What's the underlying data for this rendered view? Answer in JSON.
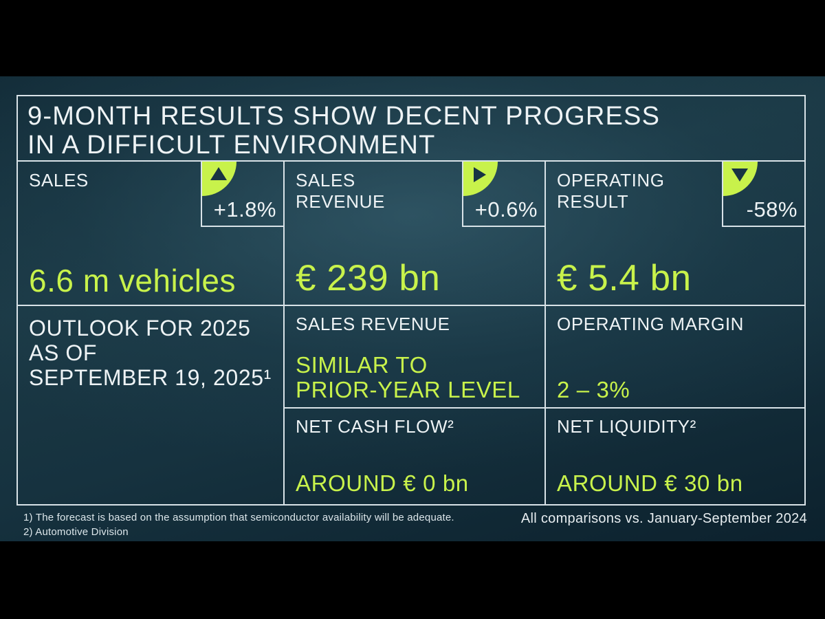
{
  "slide": {
    "title_lines": [
      "9-MONTH RESULTS SHOW DECENT PROGRESS",
      "IN A DIFFICULT ENVIRONMENT"
    ],
    "kpis": [
      {
        "label": "SALES",
        "trend": "up",
        "delta": "+1.8%",
        "value": "6.6 m vehicles"
      },
      {
        "label": "SALES REVENUE",
        "trend": "right",
        "delta": "+0.6%",
        "value": "€ 239 bn"
      },
      {
        "label": "OPERATING RESULT",
        "trend": "down",
        "delta": "-58%",
        "value": "€ 5.4 bn"
      }
    ],
    "outlook": {
      "heading_lines": [
        "OUTLOOK FOR 2025",
        "AS OF",
        "SEPTEMBER 19, 2025¹"
      ],
      "items": [
        {
          "label": "SALES REVENUE",
          "value_lines": [
            "SIMILAR TO",
            "PRIOR-YEAR LEVEL"
          ]
        },
        {
          "label": "OPERATING MARGIN",
          "value_lines": [
            "2 – 3%"
          ]
        },
        {
          "label": "NET CASH FLOW²",
          "value_lines": [
            "AROUND € 0 bn"
          ]
        },
        {
          "label": "NET LIQUIDITY²",
          "value_lines": [
            "AROUND € 30 bn"
          ]
        }
      ]
    },
    "footnotes": [
      "1) The forecast is based on the assumption that semiconductor availability will be adequate.",
      "2) Automotive Division"
    ],
    "comparison_note": "All comparisons vs. January-September 2024"
  },
  "colors": {
    "accent_green": "#c8f24b",
    "background_teal": "#16323f",
    "text_white": "#eef3f5",
    "grid_line": "#d9e3e8",
    "letterbox": "#000000"
  }
}
